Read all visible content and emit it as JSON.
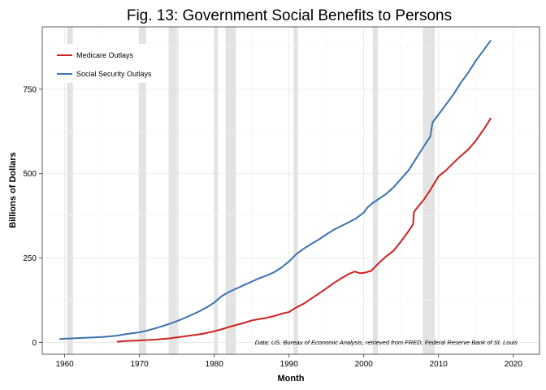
{
  "chart_data": {
    "type": "line",
    "title": "Fig. 13: Government Social Benefits to Persons",
    "xlabel": "Month",
    "ylabel": "Billions of Dollars",
    "xlim": [
      1957.0,
      2023.5
    ],
    "ylim": [
      -35,
      935
    ],
    "x_ticks": [
      1960,
      1970,
      1980,
      1990,
      2000,
      2010,
      2020
    ],
    "y_ticks": [
      0,
      250,
      500,
      750
    ],
    "grid": true,
    "legend_position": "top-left",
    "source_note": "Data: US. Bureau of Economic Analysis, retrieved from FRED, Federal Reserve Bank of St. Louis",
    "recessions": [
      [
        1960.3,
        1961.1
      ],
      [
        1969.9,
        1970.9
      ],
      [
        1973.9,
        1975.2
      ],
      [
        1980.0,
        1980.5
      ],
      [
        1981.5,
        1982.9
      ],
      [
        1990.6,
        1991.2
      ],
      [
        2001.2,
        2001.9
      ],
      [
        2007.9,
        2009.5
      ]
    ],
    "series": [
      {
        "name": "Medicare Outlays",
        "color": "#cc2222",
        "points": [
          [
            1967.0,
            2
          ],
          [
            1968.0,
            4
          ],
          [
            1969.0,
            5
          ],
          [
            1970.0,
            6
          ],
          [
            1971.0,
            7
          ],
          [
            1972.0,
            8
          ],
          [
            1973.0,
            10
          ],
          [
            1974.0,
            12
          ],
          [
            1975.0,
            15
          ],
          [
            1976.0,
            18
          ],
          [
            1977.0,
            21
          ],
          [
            1978.0,
            24
          ],
          [
            1979.0,
            28
          ],
          [
            1980.0,
            33
          ],
          [
            1981.0,
            39
          ],
          [
            1982.0,
            46
          ],
          [
            1983.0,
            52
          ],
          [
            1984.0,
            58
          ],
          [
            1985.0,
            65
          ],
          [
            1986.0,
            69
          ],
          [
            1987.0,
            73
          ],
          [
            1988.0,
            78
          ],
          [
            1989.0,
            85
          ],
          [
            1990.0,
            90
          ],
          [
            1991.0,
            104
          ],
          [
            1992.0,
            115
          ],
          [
            1993.0,
            130
          ],
          [
            1994.0,
            145
          ],
          [
            1995.0,
            160
          ],
          [
            1996.0,
            176
          ],
          [
            1997.0,
            190
          ],
          [
            1998.0,
            203
          ],
          [
            1998.8,
            210
          ],
          [
            1999.5,
            205
          ],
          [
            2000.0,
            206
          ],
          [
            2001.0,
            212
          ],
          [
            2002.0,
            235
          ],
          [
            2003.0,
            255
          ],
          [
            2004.0,
            272
          ],
          [
            2005.0,
            300
          ],
          [
            2006.0,
            330
          ],
          [
            2006.6,
            350
          ],
          [
            2006.7,
            385
          ],
          [
            2007.0,
            395
          ],
          [
            2008.0,
            422
          ],
          [
            2009.0,
            455
          ],
          [
            2010.0,
            492
          ],
          [
            2011.0,
            510
          ],
          [
            2012.0,
            532
          ],
          [
            2013.0,
            553
          ],
          [
            2014.0,
            572
          ],
          [
            2015.0,
            598
          ],
          [
            2016.0,
            630
          ],
          [
            2016.6,
            650
          ],
          [
            2017.0,
            665
          ]
        ]
      },
      {
        "name": "Social Security Outlays",
        "color": "#3a73b0",
        "points": [
          [
            1959.3,
            10
          ],
          [
            1960.0,
            11
          ],
          [
            1961.0,
            12
          ],
          [
            1962.0,
            13
          ],
          [
            1963.0,
            14
          ],
          [
            1964.0,
            15
          ],
          [
            1965.0,
            16
          ],
          [
            1966.0,
            18
          ],
          [
            1967.0,
            20
          ],
          [
            1968.0,
            24
          ],
          [
            1969.0,
            27
          ],
          [
            1970.0,
            30
          ],
          [
            1971.0,
            35
          ],
          [
            1972.0,
            41
          ],
          [
            1973.0,
            48
          ],
          [
            1974.0,
            55
          ],
          [
            1975.0,
            63
          ],
          [
            1976.0,
            72
          ],
          [
            1977.0,
            82
          ],
          [
            1978.0,
            92
          ],
          [
            1979.0,
            104
          ],
          [
            1980.0,
            118
          ],
          [
            1981.0,
            137
          ],
          [
            1982.0,
            150
          ],
          [
            1983.0,
            160
          ],
          [
            1984.0,
            170
          ],
          [
            1985.0,
            180
          ],
          [
            1986.0,
            190
          ],
          [
            1987.0,
            198
          ],
          [
            1988.0,
            208
          ],
          [
            1989.0,
            222
          ],
          [
            1990.0,
            240
          ],
          [
            1991.0,
            262
          ],
          [
            1992.0,
            278
          ],
          [
            1993.0,
            292
          ],
          [
            1994.0,
            305
          ],
          [
            1995.0,
            320
          ],
          [
            1996.0,
            334
          ],
          [
            1997.0,
            345
          ],
          [
            1998.0,
            356
          ],
          [
            1999.0,
            368
          ],
          [
            2000.0,
            385
          ],
          [
            2000.5,
            400
          ],
          [
            2001.0,
            410
          ],
          [
            2002.0,
            425
          ],
          [
            2003.0,
            440
          ],
          [
            2004.0,
            460
          ],
          [
            2005.0,
            485
          ],
          [
            2006.0,
            510
          ],
          [
            2007.0,
            545
          ],
          [
            2008.0,
            580
          ],
          [
            2008.9,
            610
          ],
          [
            2009.2,
            652
          ],
          [
            2010.0,
            675
          ],
          [
            2011.0,
            705
          ],
          [
            2012.0,
            735
          ],
          [
            2013.0,
            770
          ],
          [
            2014.0,
            800
          ],
          [
            2015.0,
            835
          ],
          [
            2016.0,
            865
          ],
          [
            2017.0,
            895
          ]
        ]
      }
    ]
  }
}
